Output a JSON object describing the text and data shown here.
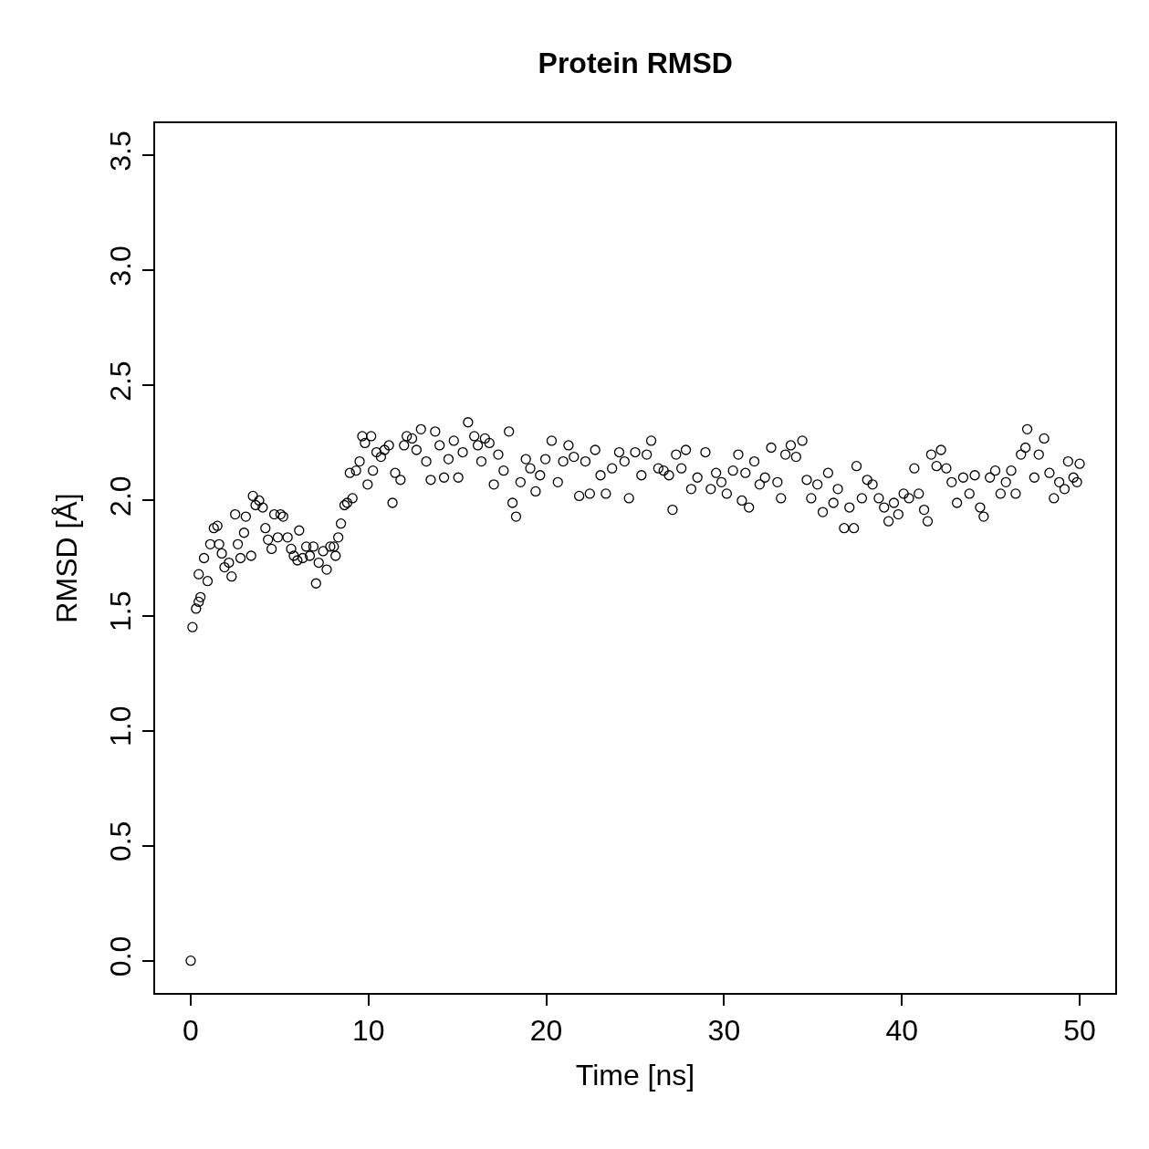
{
  "chart_data": {
    "type": "scatter",
    "title": "Protein RMSD",
    "xlabel": "Time [ns]",
    "ylabel": "RMSD [Å]",
    "x": [
      0,
      0.1,
      0.3,
      0.45,
      0.55,
      0.45,
      0.75,
      0.95,
      1.1,
      1.3,
      1.5,
      1.6,
      1.75,
      1.9,
      2.15,
      2.3,
      2.5,
      2.65,
      2.8,
      3.0,
      3.1,
      3.4,
      3.5,
      3.65,
      3.85,
      4.05,
      4.2,
      4.35,
      4.55,
      4.7,
      4.9,
      5.05,
      5.2,
      5.45,
      5.65,
      5.8,
      6.0,
      6.1,
      6.3,
      6.5,
      6.7,
      6.9,
      7.05,
      7.2,
      7.45,
      7.65,
      7.85,
      8.05,
      8.15,
      8.3,
      8.45,
      8.65,
      8.8,
      8.95,
      9.1,
      9.3,
      9.5,
      9.65,
      9.8,
      9.95,
      10.15,
      10.25,
      10.45,
      10.7,
      10.9,
      11.15,
      11.35,
      11.5,
      11.8,
      12.0,
      12.15,
      12.45,
      12.7,
      12.95,
      13.25,
      13.5,
      13.75,
      14.0,
      14.25,
      14.5,
      14.8,
      15.05,
      15.3,
      15.6,
      15.95,
      16.15,
      16.35,
      16.55,
      16.8,
      17.05,
      17.3,
      17.6,
      17.9,
      18.1,
      18.3,
      18.55,
      18.85,
      19.1,
      19.4,
      19.65,
      19.95,
      20.3,
      20.65,
      20.95,
      21.25,
      21.55,
      21.85,
      22.2,
      22.45,
      22.75,
      23.05,
      23.35,
      23.7,
      24.1,
      24.4,
      24.65,
      25.0,
      25.35,
      25.65,
      25.9,
      26.3,
      26.6,
      26.9,
      27.1,
      27.3,
      27.6,
      27.85,
      28.15,
      28.5,
      28.95,
      29.25,
      29.55,
      29.85,
      30.15,
      30.5,
      30.8,
      31.0,
      31.2,
      31.4,
      31.7,
      32.0,
      32.3,
      32.65,
      33.0,
      33.2,
      33.45,
      33.75,
      34.05,
      34.4,
      34.65,
      34.9,
      35.25,
      35.55,
      35.85,
      36.15,
      36.4,
      36.75,
      37.05,
      37.3,
      37.45,
      37.75,
      38.05,
      38.35,
      38.7,
      39.0,
      39.25,
      39.55,
      39.8,
      40.1,
      40.4,
      40.7,
      40.95,
      41.25,
      41.45,
      41.65,
      41.95,
      42.2,
      42.5,
      42.8,
      43.1,
      43.45,
      43.8,
      44.1,
      44.4,
      44.6,
      44.95,
      45.25,
      45.55,
      45.85,
      46.15,
      46.4,
      46.7,
      46.95,
      47.05,
      47.45,
      47.7,
      48.0,
      48.3,
      48.55,
      48.85,
      49.15,
      49.35,
      49.65,
      49.85,
      50.0
    ],
    "series": [
      {
        "color": "#000000",
        "values": [
          0.0,
          1.45,
          1.53,
          1.56,
          1.58,
          1.68,
          1.75,
          1.65,
          1.81,
          1.88,
          1.89,
          1.81,
          1.77,
          1.71,
          1.73,
          1.67,
          1.94,
          1.81,
          1.75,
          1.86,
          1.93,
          1.76,
          2.02,
          1.98,
          2.0,
          1.97,
          1.88,
          1.83,
          1.79,
          1.94,
          1.84,
          1.94,
          1.93,
          1.84,
          1.79,
          1.76,
          1.74,
          1.87,
          1.75,
          1.8,
          1.76,
          1.8,
          1.64,
          1.73,
          1.78,
          1.7,
          1.8,
          1.8,
          1.76,
          1.84,
          1.9,
          1.98,
          1.99,
          2.12,
          2.01,
          2.13,
          2.17,
          2.28,
          2.25,
          2.07,
          2.28,
          2.13,
          2.21,
          2.19,
          2.22,
          2.24,
          1.99,
          2.12,
          2.09,
          2.24,
          2.28,
          2.27,
          2.22,
          2.31,
          2.17,
          2.09,
          2.3,
          2.24,
          2.1,
          2.18,
          2.26,
          2.1,
          2.21,
          2.34,
          2.28,
          2.24,
          2.17,
          2.27,
          2.25,
          2.07,
          2.2,
          2.13,
          2.3,
          1.99,
          1.93,
          2.08,
          2.18,
          2.14,
          2.04,
          2.11,
          2.18,
          2.26,
          2.08,
          2.17,
          2.24,
          2.19,
          2.02,
          2.17,
          2.03,
          2.22,
          2.11,
          2.03,
          2.14,
          2.21,
          2.17,
          2.01,
          2.21,
          2.11,
          2.2,
          2.26,
          2.14,
          2.13,
          2.11,
          1.96,
          2.2,
          2.14,
          2.22,
          2.05,
          2.1,
          2.21,
          2.05,
          2.12,
          2.08,
          2.03,
          2.13,
          2.2,
          2.0,
          2.12,
          1.97,
          2.17,
          2.07,
          2.1,
          2.23,
          2.08,
          2.01,
          2.2,
          2.24,
          2.19,
          2.26,
          2.09,
          2.01,
          2.07,
          1.95,
          2.12,
          1.99,
          2.05,
          1.88,
          1.97,
          1.88,
          2.15,
          2.01,
          2.09,
          2.07,
          2.01,
          1.97,
          1.91,
          1.99,
          1.94,
          2.03,
          2.01,
          2.14,
          2.03,
          1.96,
          1.91,
          2.2,
          2.15,
          2.22,
          2.14,
          2.08,
          1.99,
          2.1,
          2.03,
          2.11,
          1.97,
          1.93,
          2.1,
          2.13,
          2.03,
          2.08,
          2.13,
          2.03,
          2.2,
          2.23,
          2.31,
          2.1,
          2.2,
          2.27,
          2.12,
          2.01,
          2.08,
          2.05,
          2.17,
          2.1,
          2.08,
          2.16
        ]
      }
    ],
    "xlim": [
      -2,
      52
    ],
    "ylim": [
      -0.14,
      3.64
    ],
    "xticks": [
      0,
      10,
      20,
      30,
      40,
      50
    ],
    "yticks": [
      {
        "value": 0,
        "label": "0.0"
      },
      {
        "value": 0.5,
        "label": "0.5"
      },
      {
        "value": 1,
        "label": "1.0"
      },
      {
        "value": 1.5,
        "label": "1.5"
      },
      {
        "value": 2,
        "label": "2.0"
      },
      {
        "value": 2.5,
        "label": "2.5"
      },
      {
        "value": 3,
        "label": "3.0"
      },
      {
        "value": 3.5,
        "label": "3.5"
      }
    ],
    "marker": "circle"
  }
}
